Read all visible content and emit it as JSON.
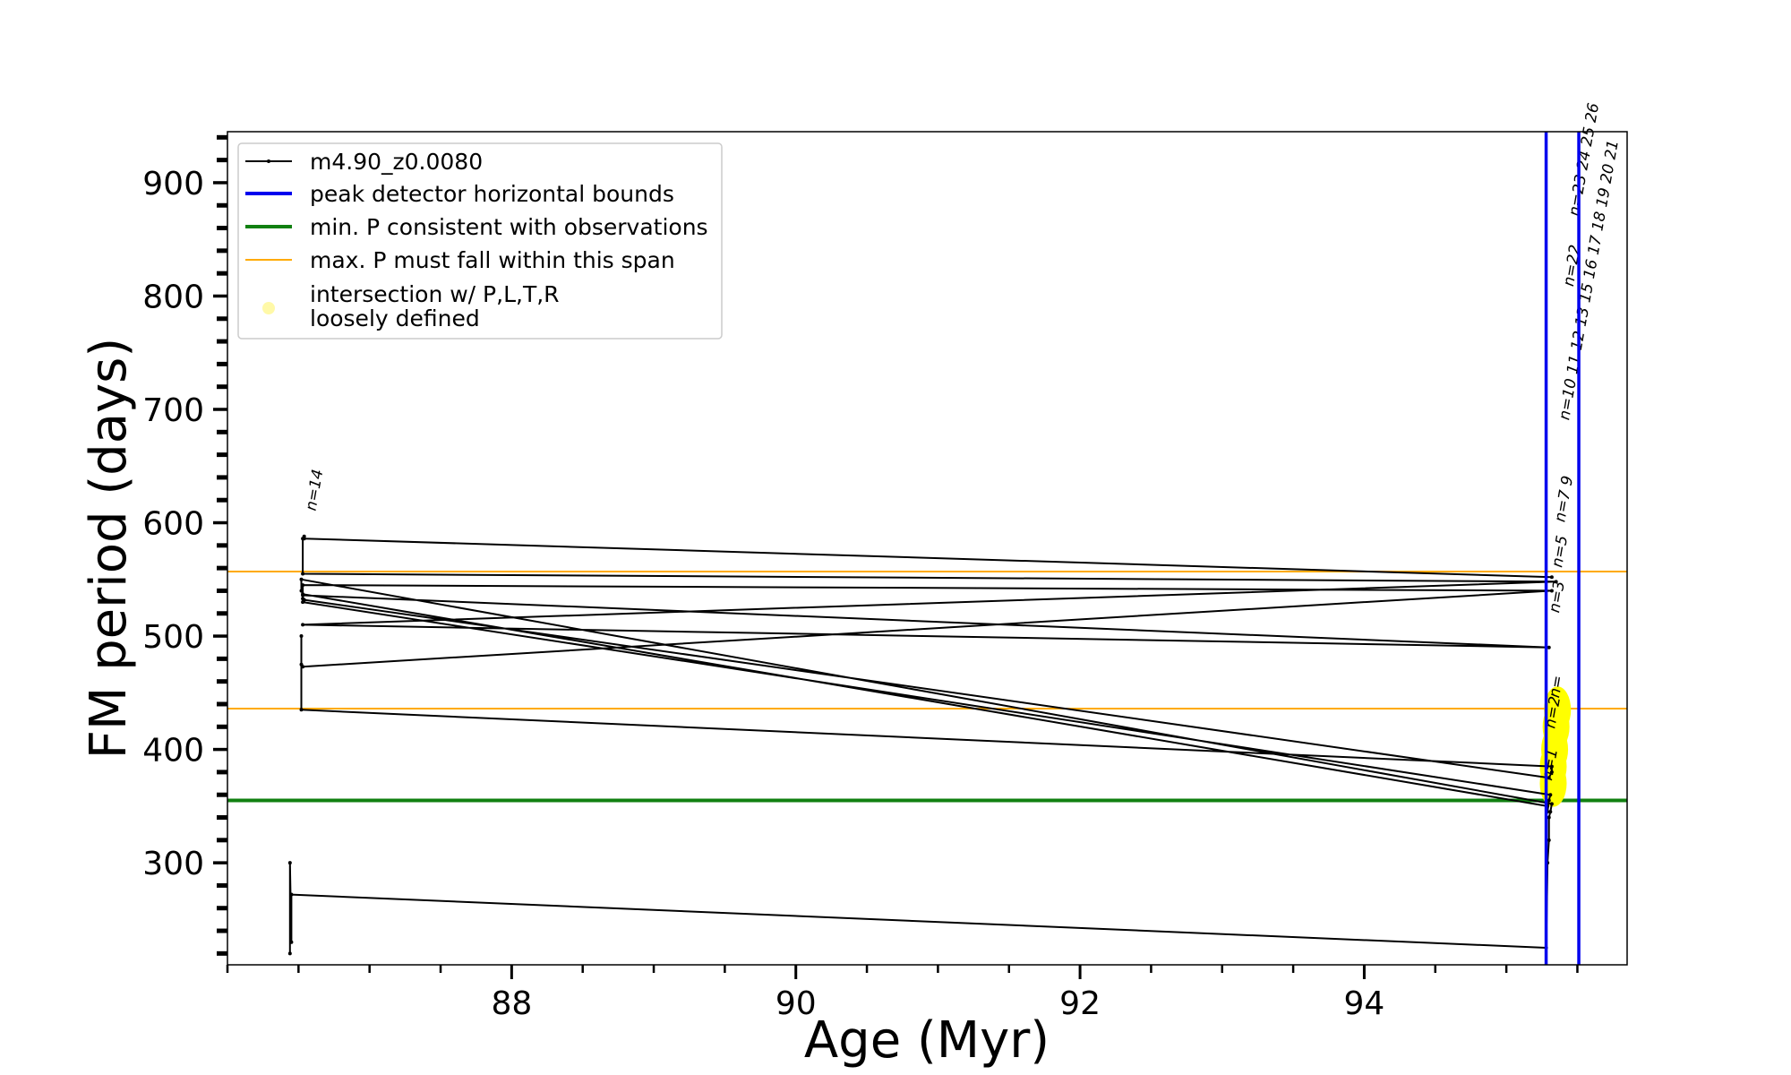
{
  "chart_data": {
    "type": "line",
    "xlabel": "Age (Myr)",
    "ylabel": "FM period (days)",
    "xlim": [
      86.0,
      95.85
    ],
    "ylim": [
      210,
      945
    ],
    "xticks": [
      88,
      90,
      92,
      94
    ],
    "yticks": [
      300,
      400,
      500,
      600,
      700,
      800,
      900
    ],
    "xminor_step": 0.5,
    "yminor_step": 20,
    "grid": false,
    "legend_position": "upper-left",
    "legend": [
      {
        "label": "m4.90_z0.0080",
        "style": "track",
        "color": "#000000"
      },
      {
        "label": "peak detector horizontal bounds",
        "style": "thick-line",
        "color": "#0000ee"
      },
      {
        "label": "min. P consistent with observations",
        "style": "thick-line",
        "color": "#118011"
      },
      {
        "label": "max. P must fall within this span",
        "style": "thin-line",
        "color": "#ffaa00"
      },
      {
        "label": "intersection w/ P,L,T,R",
        "label2": "loosely defined",
        "style": "marker",
        "color": "#fff9a8"
      }
    ],
    "track": {
      "name": "m4.90_z0.0080",
      "color": "#000000",
      "x": [
        86.44,
        86.44,
        86.45,
        86.45,
        95.28,
        95.29,
        95.3,
        95.3,
        95.31,
        95.32,
        86.52,
        86.52,
        86.53,
        95.29,
        95.29,
        95.3,
        95.31,
        86.53,
        86.53,
        86.54,
        95.3,
        95.32,
        95.32,
        86.52,
        86.52,
        86.52,
        86.53,
        95.32,
        86.53,
        86.53,
        95.3,
        86.53,
        95.35,
        86.53,
        86.53,
        86.54,
        86.54,
        95.32
      ],
      "y": [
        220,
        300,
        230,
        272,
        225,
        300,
        320,
        340,
        345,
        352,
        550,
        540,
        537,
        350,
        345,
        355,
        360,
        530,
        533,
        532,
        375,
        380,
        385,
        435,
        500,
        475,
        473,
        540,
        545,
        536,
        490,
        510,
        548,
        555,
        586,
        588,
        586,
        552
      ]
    },
    "peak_detector_bounds": [
      95.28,
      95.51
    ],
    "min_period": 355,
    "max_period_span": [
      436,
      557
    ],
    "intersections": [
      {
        "x": 95.33,
        "y": 370
      },
      {
        "x": 95.33,
        "y": 385
      },
      {
        "x": 95.34,
        "y": 400
      },
      {
        "x": 95.35,
        "y": 420
      },
      {
        "x": 95.36,
        "y": 435
      }
    ],
    "annotations": [
      {
        "text": "n=14",
        "x": 86.62,
        "y": 610
      },
      {
        "text": "n=1",
        "x": 95.32,
        "y": 372
      },
      {
        "text": "n=2",
        "x": 95.34,
        "y": 418
      },
      {
        "text": "n=",
        "x": 95.37,
        "y": 445
      },
      {
        "text": "n=3",
        "x": 95.37,
        "y": 520
      },
      {
        "text": "n=5",
        "x": 95.39,
        "y": 560
      },
      {
        "text": "n=7 9",
        "x": 95.41,
        "y": 600
      },
      {
        "text": "n=10 11 12 13 15 16 17 18 19 20 21",
        "x": 95.44,
        "y": 690
      },
      {
        "text": "n=22",
        "x": 95.47,
        "y": 808
      },
      {
        "text": "n=23 24 25 26",
        "x": 95.51,
        "y": 870
      }
    ]
  }
}
